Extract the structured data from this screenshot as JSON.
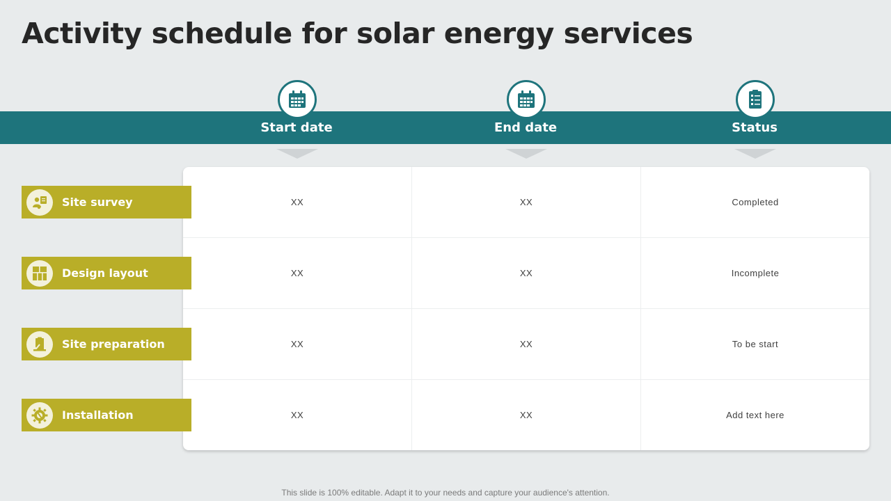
{
  "title": "Activity schedule for solar energy services",
  "columns": [
    {
      "label": "Start date",
      "icon": "calendar-icon"
    },
    {
      "label": "End date",
      "icon": "calendar-icon"
    },
    {
      "label": "Status",
      "icon": "checklist-icon"
    }
  ],
  "rows": [
    {
      "label": "Site survey",
      "icon": "surveyor-icon",
      "start": "XX",
      "end": "XX",
      "status": "Completed"
    },
    {
      "label": "Design layout",
      "icon": "layout-icon",
      "start": "XX",
      "end": "XX",
      "status": "Incomplete"
    },
    {
      "label": "Site preparation",
      "icon": "site-preparation-icon",
      "start": "XX",
      "end": "XX",
      "status": "To be start"
    },
    {
      "label": "Installation",
      "icon": "gear-wrench-icon",
      "start": "XX",
      "end": "XX",
      "status": "Add text here"
    }
  ],
  "footer": "This slide is 100% editable. Adapt it to your needs and capture your audience's attention.",
  "colors": {
    "teal": "#1e747c",
    "olive": "#b9ae28",
    "background": "#e8ebec"
  }
}
